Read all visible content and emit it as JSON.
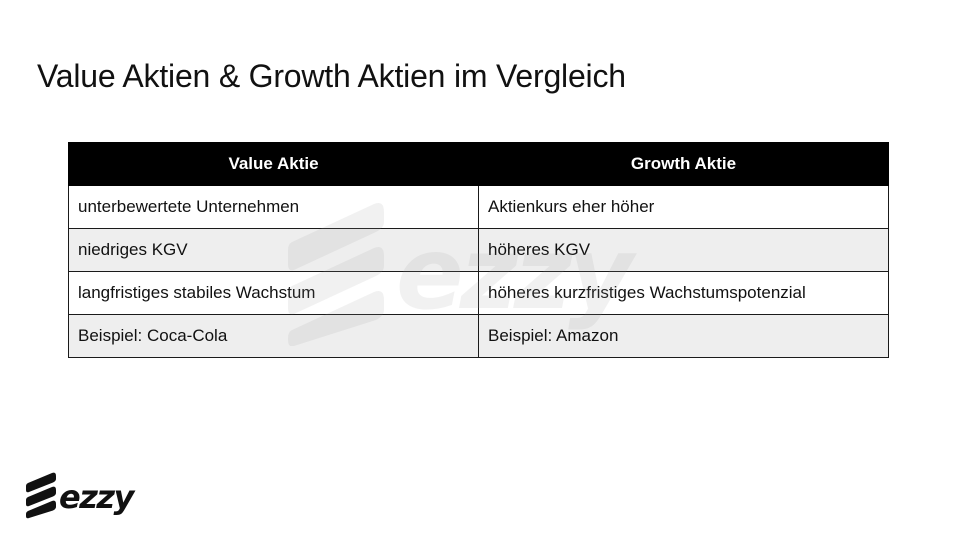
{
  "slide": {
    "title": "Value Aktien & Growth Aktien im Vergleich"
  },
  "table": {
    "headers": [
      "Value Aktie",
      "Growth Aktie"
    ],
    "rows": [
      [
        "unterbewertete Unternehmen",
        "Aktienkurs eher höher"
      ],
      [
        "niedriges KGV",
        "höheres KGV"
      ],
      [
        "langfristiges stabiles Wachstum",
        "höheres kurzfristiges Wachstumspotenzial"
      ],
      [
        "Beispiel: Coca-Cola",
        "Beispiel: Amazon"
      ]
    ]
  },
  "branding": {
    "logo_text": "ezzy",
    "watermark_text": "ezzy",
    "logo_icon": "ezzy-stripes-icon",
    "color": "#111111",
    "watermark_color": "#9a9a9a"
  },
  "colors": {
    "header_bg": "#000000",
    "header_text": "#ffffff",
    "row_alt_bg": "#eeeeee",
    "border": "#1a1a1a"
  }
}
